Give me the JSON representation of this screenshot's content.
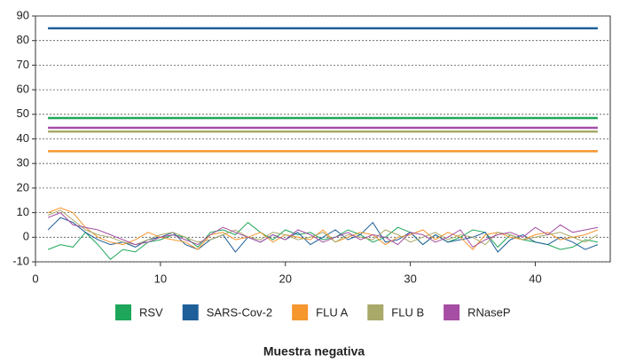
{
  "chart_data": {
    "type": "line",
    "title": "Muestra negativa",
    "x": [
      1,
      2,
      3,
      4,
      5,
      6,
      7,
      8,
      9,
      10,
      11,
      12,
      13,
      14,
      15,
      16,
      17,
      18,
      19,
      20,
      21,
      22,
      23,
      24,
      25,
      26,
      27,
      28,
      29,
      30,
      31,
      32,
      33,
      34,
      35,
      36,
      37,
      38,
      39,
      40,
      41,
      42,
      43,
      44,
      45
    ],
    "xlim": [
      0,
      46
    ],
    "xticks": [
      0,
      10,
      20,
      30,
      40
    ],
    "ylim": [
      -10,
      90
    ],
    "yticks": [
      -10,
      0,
      10,
      20,
      30,
      40,
      50,
      60,
      70,
      80,
      90
    ],
    "grid": true,
    "series": [
      {
        "name": "RSV",
        "color": "#1ea65a",
        "threshold": 48.5,
        "values": [
          -5,
          -3,
          -4,
          2,
          -3,
          -9,
          -5,
          -6,
          -2,
          -1,
          1,
          0,
          -4,
          2,
          3,
          1,
          6,
          2,
          -1,
          3,
          1,
          2,
          -1,
          0,
          3,
          1,
          -2,
          0,
          4,
          2,
          -3,
          1,
          -2,
          0,
          3,
          2,
          -4,
          1,
          -1,
          -2,
          -3,
          -5,
          -4,
          -1,
          -2
        ]
      },
      {
        "name": "SARS-Cov-2",
        "color": "#1f5f99",
        "threshold": 85,
        "values": [
          3,
          8,
          6,
          2,
          -1,
          -3,
          -2,
          -4,
          -1,
          0,
          2,
          -3,
          -5,
          -1,
          1,
          -6,
          0,
          -2,
          1,
          -1,
          2,
          -3,
          0,
          3,
          -1,
          1,
          6,
          -2,
          -1,
          2,
          -3,
          1,
          -2,
          -1,
          0,
          2,
          -6,
          -1,
          1,
          -2,
          -3,
          0,
          -2,
          -5,
          -3
        ]
      },
      {
        "name": "FLU A",
        "color": "#f5962f",
        "threshold": 35,
        "values": [
          10,
          12,
          10,
          4,
          0,
          -2,
          -3,
          -1,
          2,
          0,
          -1,
          -2,
          -5,
          1,
          2,
          -1,
          0,
          2,
          -2,
          1,
          0,
          -1,
          3,
          -2,
          0,
          2,
          1,
          -3,
          0,
          1,
          3,
          -1,
          2,
          0,
          -5,
          1,
          2,
          0,
          -1,
          1,
          2,
          -1,
          0,
          1,
          3
        ]
      },
      {
        "name": "FLU B",
        "color": "#a9a96a",
        "threshold": 43,
        "values": [
          9,
          11,
          7,
          3,
          1,
          0,
          -2,
          -3,
          -1,
          1,
          2,
          0,
          -2,
          -1,
          1,
          3,
          0,
          -1,
          2,
          1,
          -1,
          0,
          2,
          -2,
          1,
          0,
          -1,
          3,
          1,
          -2,
          0,
          2,
          -1,
          1,
          0,
          -3,
          2,
          1,
          -1,
          0,
          1,
          2,
          0,
          -2,
          1
        ]
      },
      {
        "name": "RNaseP",
        "color": "#a54ea3",
        "threshold": 44.5,
        "values": [
          8,
          10,
          5,
          4,
          3,
          1,
          -1,
          -3,
          -2,
          0,
          1,
          -1,
          -3,
          1,
          4,
          2,
          0,
          -2,
          1,
          -1,
          3,
          1,
          -2,
          0,
          2,
          -1,
          1,
          0,
          -3,
          2,
          1,
          -2,
          0,
          3,
          -4,
          -1,
          1,
          2,
          0,
          4,
          1,
          5,
          2,
          3,
          4
        ]
      }
    ]
  }
}
